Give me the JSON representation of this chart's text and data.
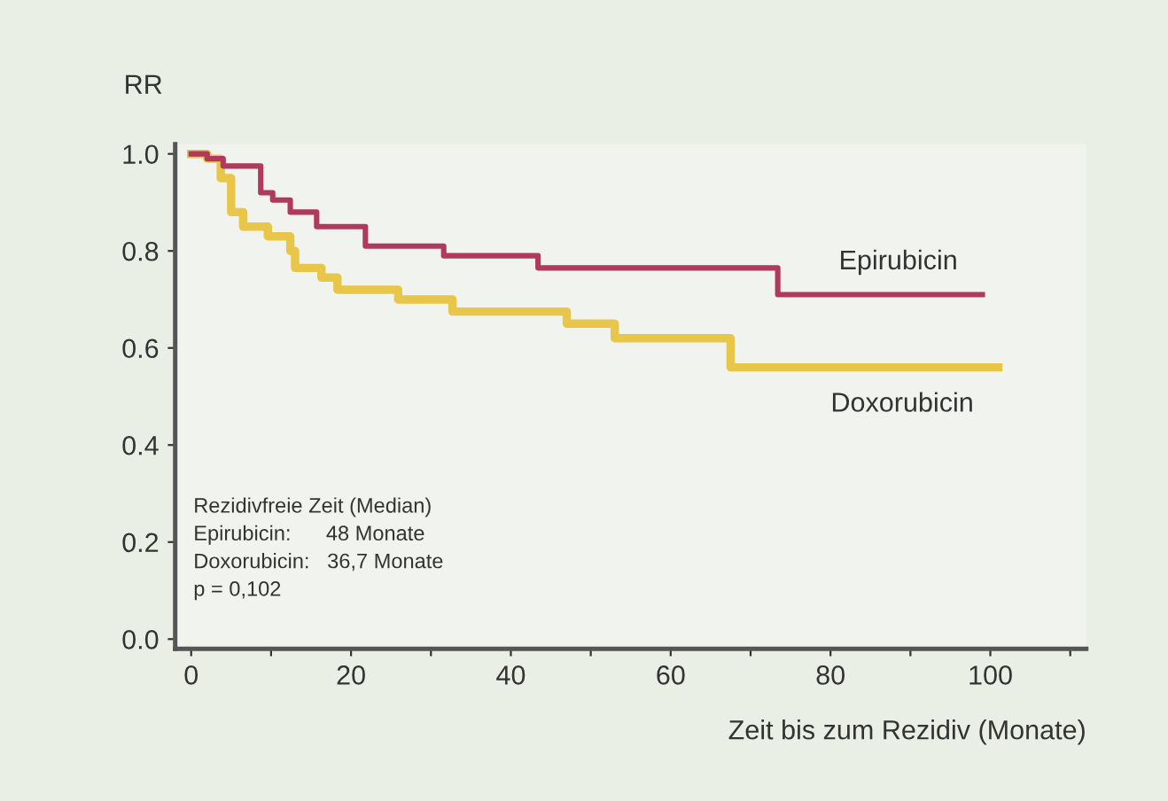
{
  "chart_data": {
    "type": "step",
    "ylabel": "RR",
    "xlabel": "Zeit bis zum Rezidiv (Monate)",
    "series": [
      {
        "name": "Epirubicin",
        "color": "#b03a5e",
        "x": [
          0,
          2,
          4,
          8.7,
          10.2,
          12.4,
          15.7,
          21.8,
          31.6,
          43.4,
          73.4,
          99
        ],
        "values": [
          1.0,
          0.99,
          0.975,
          0.92,
          0.905,
          0.88,
          0.85,
          0.81,
          0.79,
          0.765,
          0.71,
          0.71
        ]
      },
      {
        "name": "Doxorubicin",
        "color": "#e8c64a",
        "x": [
          0,
          2,
          3.7,
          5,
          6.5,
          9.6,
          12.4,
          13,
          16.3,
          18.3,
          25.9,
          32.7,
          47,
          53,
          67.5,
          101
        ],
        "values": [
          1.0,
          0.99,
          0.95,
          0.88,
          0.85,
          0.83,
          0.8,
          0.765,
          0.745,
          0.72,
          0.7,
          0.675,
          0.65,
          0.62,
          0.56,
          0.56
        ]
      }
    ],
    "annotations": [
      "Rezidivfreie Zeit (Median)",
      "Epirubicin:      48 Monate",
      "Doxorubicin:   36,7 Monate",
      "p = 0,102"
    ],
    "xlim": [
      -2,
      112
    ],
    "ylim": [
      -0.02,
      1.02
    ],
    "xticks": [
      0,
      {
        "value": 10,
        "label": null
      },
      20,
      {
        "value": 30,
        "label": null
      },
      40,
      {
        "value": 50,
        "label": null
      },
      60,
      {
        "value": 70,
        "label": null
      },
      80,
      {
        "value": 90,
        "label": null
      },
      100,
      {
        "value": 110,
        "label": null
      }
    ],
    "yticks": [
      {
        "value": 0,
        "label": "0.0"
      },
      {
        "value": 0.2,
        "label": "0.2"
      },
      {
        "value": 0.4,
        "label": "0.4"
      },
      {
        "value": 0.6,
        "label": "0.6"
      },
      {
        "value": 0.8,
        "label": "0.8"
      },
      {
        "value": 1.0,
        "label": "1.0"
      }
    ],
    "grid": false,
    "legend": false
  }
}
